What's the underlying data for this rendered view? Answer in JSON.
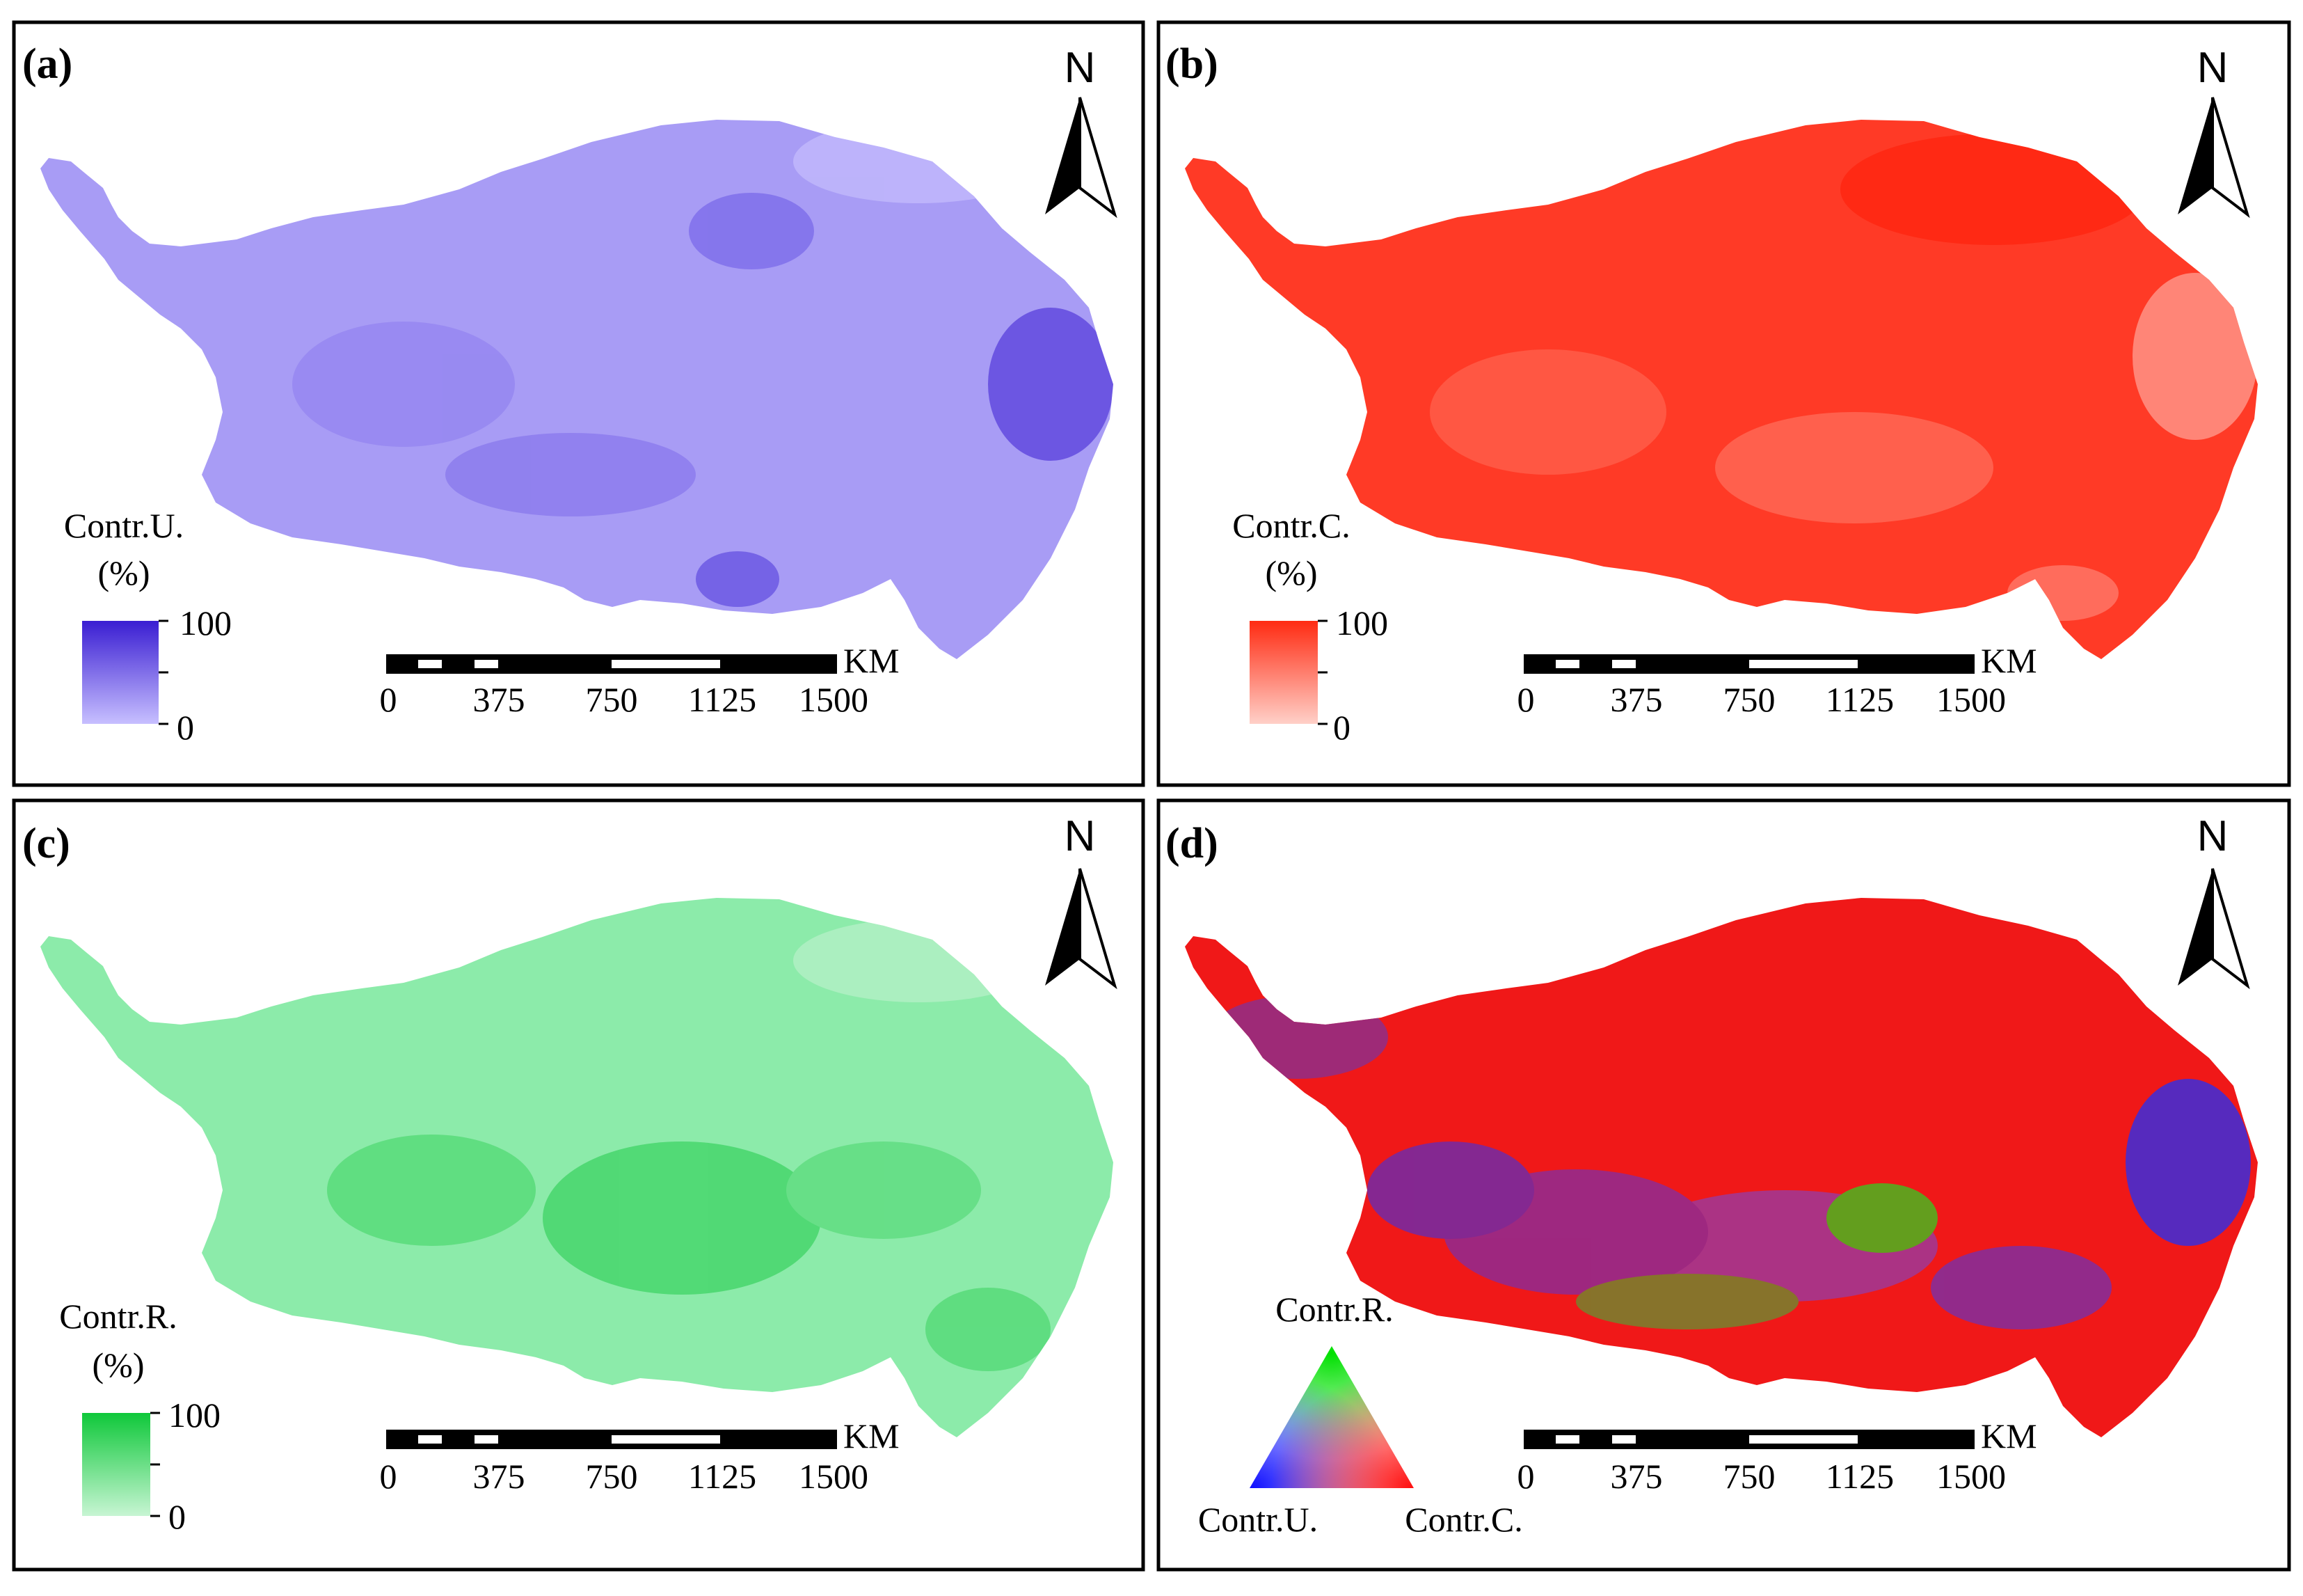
{
  "north_label": "N",
  "scale": {
    "unit": "KM",
    "ticks": [
      "0",
      "375",
      "750",
      "1125",
      "1500"
    ]
  },
  "panels": [
    {
      "label": "(a)",
      "legend_title_1": "Contr.U.",
      "legend_title_2": "(%)",
      "legend_max": "100",
      "legend_min": "0",
      "fill_high": "#3a1ed2",
      "fill_low": "#c7bfff",
      "fill_base": "#9f92f4"
    },
    {
      "label": "(b)",
      "legend_title_1": "Contr.C.",
      "legend_title_2": "(%)",
      "legend_max": "100",
      "legend_min": "0",
      "fill_high": "#ff2b12",
      "fill_low": "#ffd0c8",
      "fill_base": "#ff4a36"
    },
    {
      "label": "(c)",
      "legend_title_1": "Contr.R.",
      "legend_title_2": "(%)",
      "legend_max": "100",
      "legend_min": "0",
      "fill_high": "#0fc83a",
      "fill_low": "#c7f5d3",
      "fill_base": "#86eaa1"
    },
    {
      "label": "(d)",
      "ternary_top": "Contr.R.",
      "ternary_left": "Contr.U.",
      "ternary_right": "Contr.C.",
      "fill_base": "#f01010"
    }
  ]
}
